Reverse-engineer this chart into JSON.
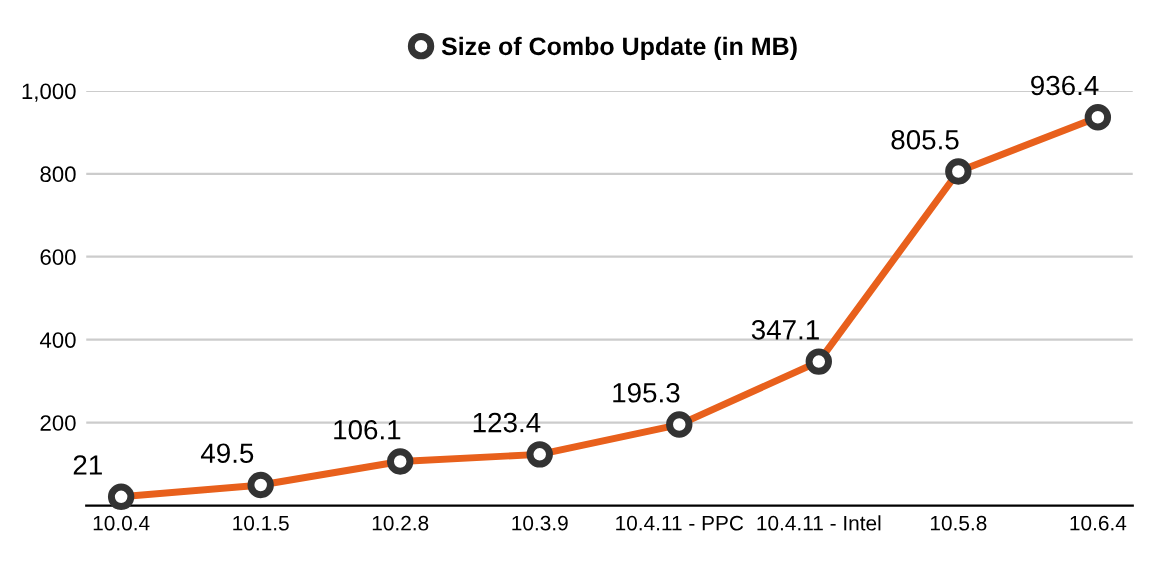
{
  "chart_data": {
    "type": "line",
    "categories": [
      "10.0.4",
      "10.1.5",
      "10.2.8",
      "10.3.9",
      "10.4.11 - PPC",
      "10.4.11 - Intel",
      "10.5.8",
      "10.6.4"
    ],
    "series": [
      {
        "name": "Size of Combo Update (in MB)",
        "color": "#e8601c",
        "values": [
          21,
          49.5,
          106.1,
          123.4,
          195.3,
          347.1,
          805.5,
          936.4
        ]
      }
    ],
    "ylim": [
      0,
      1000
    ],
    "yticks": [
      200,
      400,
      600,
      800,
      {
        "value": 1000,
        "label": "1,000"
      }
    ],
    "grid": "y",
    "legend": "top",
    "marker": "circle",
    "line_style": "solid",
    "data_labels": true
  }
}
